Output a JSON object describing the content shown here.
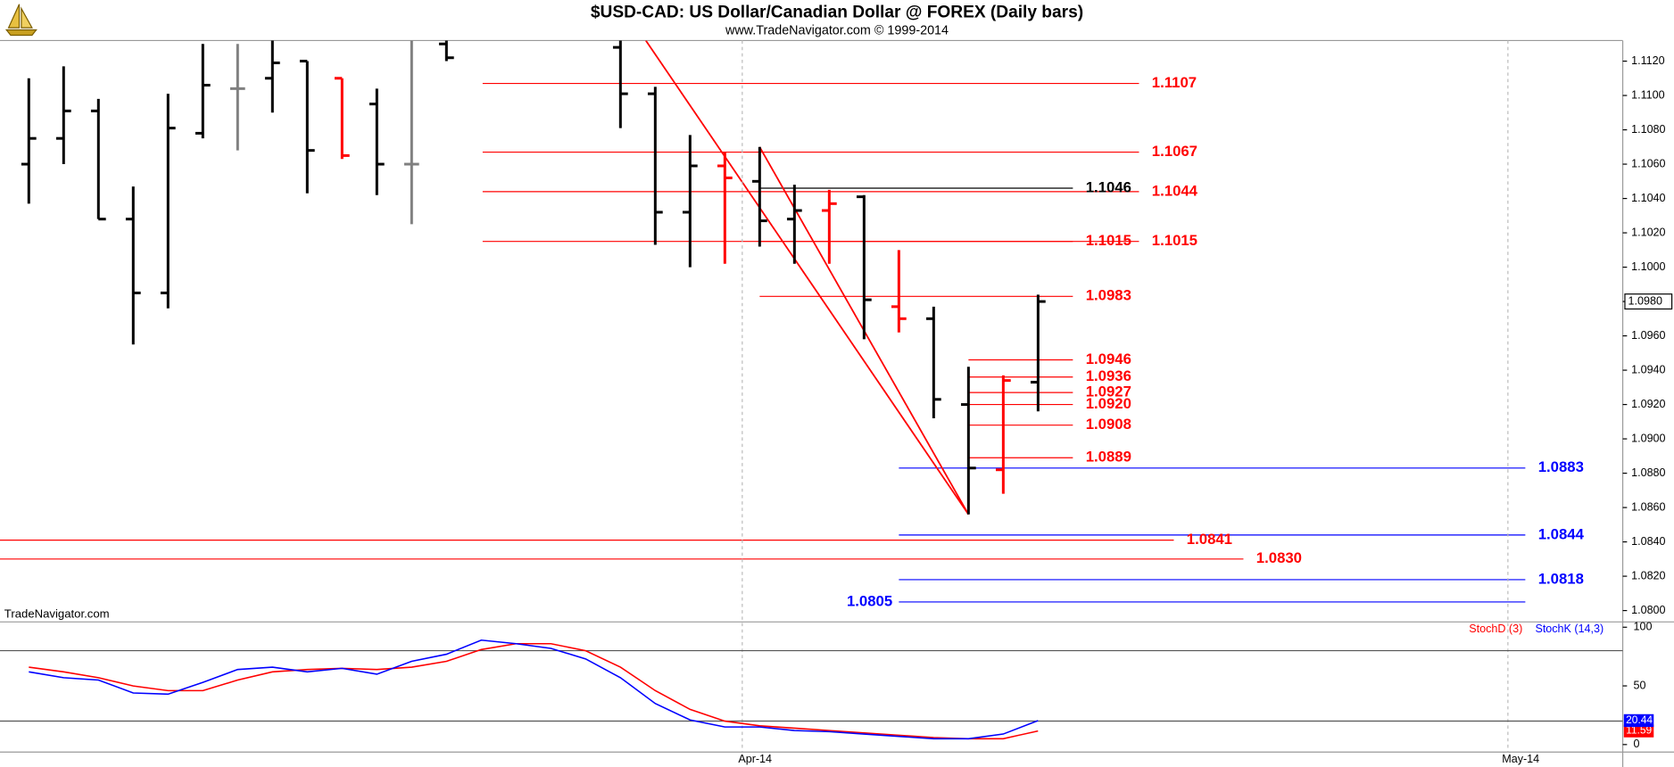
{
  "chart_data": [
    {
      "type": "ohlc",
      "title": "$USD-CAD:  US Dollar/Canadian Dollar @ FOREX  (Daily bars)",
      "subtitle": "www.TradeNavigator.com © 1999-2014",
      "watermark": "TradeNavigator.com",
      "x": [
        0,
        1,
        2,
        3,
        4,
        5,
        6,
        7,
        8,
        9,
        10,
        11,
        12,
        17,
        18,
        19,
        20,
        21,
        22,
        23,
        24,
        25,
        26,
        27,
        28,
        29
      ],
      "open": [
        1.106,
        1.1075,
        1.1091,
        1.1028,
        1.0985,
        1.1078,
        1.1104,
        1.111,
        1.112,
        1.111,
        1.1095,
        1.106,
        1.113,
        1.1128,
        1.1101,
        1.1032,
        1.1059,
        1.105,
        1.1028,
        1.1033,
        1.1041,
        1.0977,
        1.097,
        1.092,
        1.0882,
        1.0933
      ],
      "high": [
        1.111,
        1.1117,
        1.1098,
        1.1047,
        1.1101,
        1.113,
        1.113,
        1.1132,
        1.112,
        1.111,
        1.1104,
        1.1132,
        1.1132,
        1.1132,
        1.1105,
        1.1077,
        1.1067,
        1.107,
        1.1048,
        1.1045,
        1.1042,
        1.101,
        1.0977,
        1.0942,
        1.0937,
        1.0984
      ],
      "low": [
        1.1037,
        1.106,
        1.1028,
        1.0955,
        1.0976,
        1.1075,
        1.1068,
        1.109,
        1.1043,
        1.1063,
        1.1042,
        1.1025,
        1.112,
        1.1081,
        1.1013,
        1.1,
        1.1002,
        1.1012,
        1.1002,
        1.1002,
        1.0958,
        1.0962,
        1.0912,
        1.0856,
        1.0868,
        1.0916
      ],
      "close": [
        1.1075,
        1.1091,
        1.1028,
        1.0985,
        1.1081,
        1.1106,
        1.1104,
        1.1119,
        1.1068,
        1.1065,
        1.106,
        1.106,
        1.1122,
        1.1101,
        1.1032,
        1.1059,
        1.1052,
        1.1027,
        1.1033,
        1.1037,
        1.0981,
        1.097,
        1.0923,
        1.0883,
        1.0934,
        1.098
      ],
      "colors": [
        "#000000",
        "#000000",
        "#000000",
        "#000000",
        "#000000",
        "#000000",
        "#808080",
        "#000000",
        "#000000",
        "#ff0000",
        "#000000",
        "#808080",
        "#000000",
        "#000000",
        "#000000",
        "#000000",
        "#ff0000",
        "#000000",
        "#000000",
        "#ff0000",
        "#000000",
        "#ff0000",
        "#000000",
        "#000000",
        "#ff0000",
        "#000000"
      ],
      "xlim": [
        -0.828,
        45.8
      ],
      "xticks": [
        {
          "value": 20.5,
          "label": "Apr-14"
        },
        {
          "value": 42.5,
          "label": "May-14"
        }
      ],
      "grid_x": true,
      "ylim": [
        1.0794,
        1.1132
      ],
      "yticks": [
        {
          "value": 1.112,
          "label": "1.1120"
        },
        {
          "value": 1.11,
          "label": "1.1100"
        },
        {
          "value": 1.108,
          "label": "1.1080"
        },
        {
          "value": 1.106,
          "label": "1.1060"
        },
        {
          "value": 1.104,
          "label": "1.1040"
        },
        {
          "value": 1.102,
          "label": "1.1020"
        },
        {
          "value": 1.1,
          "label": "1.1000"
        },
        {
          "value": 1.098,
          "label": "1.0980"
        },
        {
          "value": 1.096,
          "label": "1.0960"
        },
        {
          "value": 1.094,
          "label": "1.0940"
        },
        {
          "value": 1.092,
          "label": "1.0920"
        },
        {
          "value": 1.09,
          "label": "1.0900"
        },
        {
          "value": 1.088,
          "label": "1.0880"
        },
        {
          "value": 1.086,
          "label": "1.0860"
        },
        {
          "value": 1.084,
          "label": "1.0840"
        },
        {
          "value": 1.082,
          "label": "1.0820"
        },
        {
          "value": 1.08,
          "label": "1.0800"
        }
      ],
      "last_price": {
        "value": 1.098,
        "label": "1.0980"
      },
      "levels": [
        {
          "value": 1.1107,
          "label": "1.1107",
          "color": "#ff0000",
          "from": 13.04,
          "to": 31.9
        },
        {
          "value": 1.1067,
          "label": "1.1067",
          "color": "#ff0000",
          "from": 13.04,
          "to": 31.9
        },
        {
          "value": 1.1046,
          "label": "1.1046",
          "color": "#000000",
          "from": 21,
          "to": 30
        },
        {
          "value": 1.1044,
          "label": "1.1044",
          "color": "#ff0000",
          "from": 13.04,
          "to": 31.9
        },
        {
          "value": 1.1015,
          "label": "1.1015",
          "color": "#ff0000",
          "from": 13.04,
          "to": 31.9
        },
        {
          "value": 1.1015,
          "label": "1.1015",
          "color": "#ff0000",
          "from": 21,
          "to": 30
        },
        {
          "value": 1.0983,
          "label": "1.0983",
          "color": "#ff0000",
          "from": 21,
          "to": 30
        },
        {
          "value": 1.0946,
          "label": "1.0946",
          "color": "#ff0000",
          "from": 27,
          "to": 30
        },
        {
          "value": 1.0936,
          "label": "1.0936",
          "color": "#ff0000",
          "from": 27,
          "to": 30
        },
        {
          "value": 1.0927,
          "label": "1.0927",
          "color": "#ff0000",
          "from": 27,
          "to": 30
        },
        {
          "value": 1.092,
          "label": "1.0920",
          "color": "#ff0000",
          "from": 27,
          "to": 30
        },
        {
          "value": 1.0908,
          "label": "1.0908",
          "color": "#ff0000",
          "from": 27,
          "to": 30
        },
        {
          "value": 1.0889,
          "label": "1.0889",
          "color": "#ff0000",
          "from": 27,
          "to": 30
        },
        {
          "value": 1.0883,
          "label": "1.0883",
          "color": "#0000ff",
          "from": 25,
          "to": 43
        },
        {
          "value": 1.0844,
          "label": "1.0844",
          "color": "#0000ff",
          "from": 25,
          "to": 43
        },
        {
          "value": 1.0841,
          "label": "1.0841",
          "color": "#ff0000",
          "from": -0.828,
          "to": 32.9
        },
        {
          "value": 1.083,
          "label": "1.0830",
          "color": "#ff0000",
          "from": -0.828,
          "to": 34.9
        },
        {
          "value": 1.0818,
          "label": "1.0818",
          "color": "#0000ff",
          "from": 25,
          "to": 43
        },
        {
          "value": 1.0805,
          "label": "1.0805",
          "color": "#0000ff",
          "from": 25,
          "to": 43,
          "label_side": "left"
        }
      ],
      "trendlines": [
        {
          "color": "#ff0000",
          "x": [
            17.73,
            27
          ],
          "values": [
            1.1132,
            1.0856
          ]
        },
        {
          "color": "#ff0000",
          "x": [
            21,
            27
          ],
          "values": [
            1.107,
            1.0856
          ]
        }
      ]
    },
    {
      "type": "line",
      "x": [
        0,
        1,
        2,
        3,
        4,
        5,
        6,
        7,
        8,
        9,
        10,
        11,
        12,
        13,
        14,
        15,
        16,
        17,
        18,
        19,
        20,
        21,
        22,
        23,
        24,
        25,
        26,
        27,
        28,
        29
      ],
      "series": [
        {
          "name": "StochD (3)",
          "color": "#ff0000",
          "values": [
            66,
            62,
            57,
            50,
            46,
            46,
            55,
            62,
            64,
            65,
            64,
            66,
            71,
            81,
            86,
            86,
            80,
            66,
            46,
            30,
            20,
            16,
            14,
            12,
            10,
            8,
            6,
            5,
            5,
            11.59
          ]
        },
        {
          "name": "StochK (14,3)",
          "color": "#0000ff",
          "values": [
            62,
            57,
            55,
            44,
            43,
            53,
            64,
            66,
            62,
            65,
            60,
            71,
            77,
            89,
            86,
            82,
            73,
            57,
            35,
            21,
            15,
            15,
            12,
            11,
            9,
            7,
            5,
            5,
            9,
            20.44
          ]
        }
      ],
      "xlim": [
        -0.828,
        45.8
      ],
      "ylim": [
        -6.4,
        102.7
      ],
      "yticks": [
        0,
        50,
        100
      ],
      "reference_lines": [
        20,
        80
      ]
    }
  ]
}
